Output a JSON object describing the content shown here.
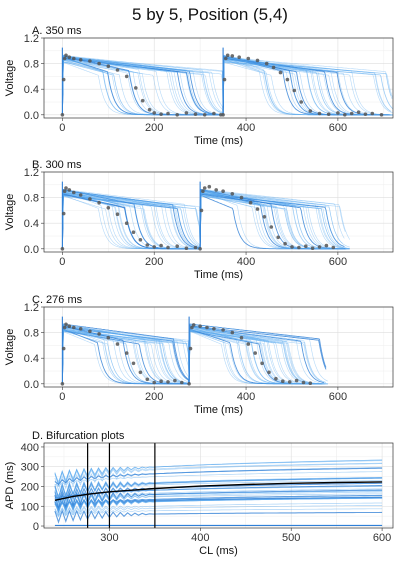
{
  "figure_title": "5 by 5, Position (5,4)",
  "colors": {
    "ensemble": "#5aaaf0",
    "ensemble_dark": "#2f7fd6",
    "points": "#555555",
    "mean_line": "#000000",
    "vline": "#000000"
  },
  "chart_data": [
    {
      "type": "line",
      "title": "A. 350 ms",
      "xlabel": "Time (ms)",
      "ylabel": "Voltage",
      "xlim": [
        -40,
        720
      ],
      "ylim": [
        -0.05,
        1.2
      ],
      "xticks": [
        0,
        200,
        400,
        600
      ],
      "yticks": [
        0.0,
        0.4,
        0.8,
        1.2
      ],
      "ytick_labels": [
        "0.0",
        "0.4",
        "0.8",
        "1.2"
      ],
      "cycle_length": 350,
      "ensemble_curves": 40,
      "points": [
        [
          0,
          0.0
        ],
        [
          3,
          0.55
        ],
        [
          5,
          0.88
        ],
        [
          8,
          0.93
        ],
        [
          15,
          0.9
        ],
        [
          25,
          0.88
        ],
        [
          40,
          0.86
        ],
        [
          60,
          0.84
        ],
        [
          80,
          0.8
        ],
        [
          100,
          0.76
        ],
        [
          120,
          0.7
        ],
        [
          140,
          0.6
        ],
        [
          160,
          0.42
        ],
        [
          175,
          0.22
        ],
        [
          190,
          0.08
        ],
        [
          200,
          0.03
        ],
        [
          215,
          0.01
        ],
        [
          230,
          0.02
        ],
        [
          250,
          0.0
        ],
        [
          270,
          0.03
        ],
        [
          290,
          0.01
        ],
        [
          310,
          0.0
        ],
        [
          330,
          0.02
        ],
        [
          345,
          0.0
        ],
        [
          350,
          0.0
        ],
        [
          353,
          0.55
        ],
        [
          356,
          0.88
        ],
        [
          360,
          0.93
        ],
        [
          370,
          0.92
        ],
        [
          385,
          0.9
        ],
        [
          405,
          0.88
        ],
        [
          425,
          0.85
        ],
        [
          445,
          0.8
        ],
        [
          460,
          0.74
        ],
        [
          475,
          0.66
        ],
        [
          490,
          0.55
        ],
        [
          505,
          0.38
        ],
        [
          520,
          0.2
        ],
        [
          540,
          0.06
        ],
        [
          560,
          0.02
        ],
        [
          580,
          0.01
        ],
        [
          600,
          0.03
        ],
        [
          615,
          0.0
        ],
        [
          630,
          0.02
        ],
        [
          645,
          0.04
        ],
        [
          660,
          0.01
        ],
        [
          675,
          0.02
        ],
        [
          695,
          0.0
        ]
      ]
    },
    {
      "type": "line",
      "title": "B. 300 ms",
      "xlabel": "Time (ms)",
      "ylabel": "Voltage",
      "xlim": [
        -40,
        720
      ],
      "ylim": [
        -0.05,
        1.2
      ],
      "xticks": [
        0,
        200,
        400,
        600
      ],
      "yticks": [
        0.0,
        0.4,
        0.8,
        1.2
      ],
      "ytick_labels": [
        "0.0",
        "0.4",
        "0.8",
        "1.2"
      ],
      "cycle_length": 300,
      "ensemble_curves": 40,
      "points": [
        [
          0,
          0.0
        ],
        [
          3,
          0.55
        ],
        [
          5,
          0.9
        ],
        [
          8,
          0.95
        ],
        [
          15,
          0.92
        ],
        [
          25,
          0.88
        ],
        [
          40,
          0.84
        ],
        [
          60,
          0.78
        ],
        [
          80,
          0.72
        ],
        [
          100,
          0.64
        ],
        [
          120,
          0.54
        ],
        [
          140,
          0.4
        ],
        [
          155,
          0.26
        ],
        [
          170,
          0.14
        ],
        [
          185,
          0.06
        ],
        [
          200,
          0.03
        ],
        [
          215,
          0.05
        ],
        [
          230,
          0.02
        ],
        [
          250,
          0.04
        ],
        [
          270,
          0.01
        ],
        [
          290,
          0.02
        ],
        [
          300,
          0.0
        ],
        [
          303,
          0.6
        ],
        [
          306,
          0.9
        ],
        [
          310,
          0.95
        ],
        [
          320,
          0.97
        ],
        [
          335,
          0.92
        ],
        [
          350,
          0.9
        ],
        [
          370,
          0.86
        ],
        [
          390,
          0.8
        ],
        [
          410,
          0.72
        ],
        [
          425,
          0.62
        ],
        [
          440,
          0.5
        ],
        [
          455,
          0.34
        ],
        [
          470,
          0.18
        ],
        [
          485,
          0.08
        ],
        [
          500,
          0.03
        ],
        [
          515,
          0.02
        ],
        [
          530,
          0.04
        ],
        [
          545,
          0.01
        ],
        [
          560,
          0.03
        ],
        [
          575,
          0.05
        ],
        [
          590,
          0.02
        ]
      ]
    },
    {
      "type": "line",
      "title": "C. 276 ms",
      "xlabel": "Time (ms)",
      "ylabel": "Voltage",
      "xlim": [
        -40,
        720
      ],
      "ylim": [
        -0.05,
        1.2
      ],
      "xticks": [
        0,
        200,
        400,
        600
      ],
      "yticks": [
        0.0,
        0.4,
        0.8,
        1.2
      ],
      "ytick_labels": [
        "0.0",
        "0.4",
        "0.8",
        "1.2"
      ],
      "cycle_length": 276,
      "ensemble_curves": 40,
      "points": [
        [
          0,
          0.0
        ],
        [
          3,
          0.55
        ],
        [
          5,
          0.88
        ],
        [
          8,
          0.93
        ],
        [
          15,
          0.9
        ],
        [
          25,
          0.88
        ],
        [
          40,
          0.86
        ],
        [
          60,
          0.82
        ],
        [
          80,
          0.78
        ],
        [
          100,
          0.72
        ],
        [
          120,
          0.62
        ],
        [
          140,
          0.48
        ],
        [
          155,
          0.32
        ],
        [
          170,
          0.18
        ],
        [
          185,
          0.07
        ],
        [
          200,
          0.02
        ],
        [
          215,
          0.04
        ],
        [
          230,
          0.03
        ],
        [
          245,
          0.05
        ],
        [
          260,
          0.02
        ],
        [
          276,
          0.0
        ],
        [
          279,
          0.55
        ],
        [
          282,
          0.88
        ],
        [
          286,
          0.92
        ],
        [
          300,
          0.9
        ],
        [
          315,
          0.88
        ],
        [
          330,
          0.86
        ],
        [
          350,
          0.84
        ],
        [
          370,
          0.8
        ],
        [
          390,
          0.72
        ],
        [
          405,
          0.62
        ],
        [
          420,
          0.48
        ],
        [
          435,
          0.32
        ],
        [
          450,
          0.18
        ],
        [
          465,
          0.08
        ],
        [
          480,
          0.04
        ],
        [
          495,
          0.03
        ],
        [
          510,
          0.05
        ],
        [
          525,
          0.02
        ],
        [
          540,
          0.01
        ]
      ]
    },
    {
      "type": "line",
      "title": "D. Bifurcation plots",
      "xlabel": "CL (ms)",
      "ylabel": "APD (ms)",
      "xlim": [
        228,
        612
      ],
      "ylim": [
        -10,
        420
      ],
      "xticks": [
        300,
        400,
        500,
        600
      ],
      "yticks": [
        0,
        100,
        200,
        300,
        400
      ],
      "vlines": [
        276,
        300,
        350
      ],
      "ensemble_curves": 34,
      "mean_curve": [
        [
          240,
          130
        ],
        [
          260,
          150
        ],
        [
          280,
          163
        ],
        [
          300,
          173
        ],
        [
          350,
          190
        ],
        [
          400,
          202
        ],
        [
          450,
          210
        ],
        [
          500,
          216
        ],
        [
          550,
          220
        ],
        [
          600,
          223
        ]
      ]
    }
  ]
}
